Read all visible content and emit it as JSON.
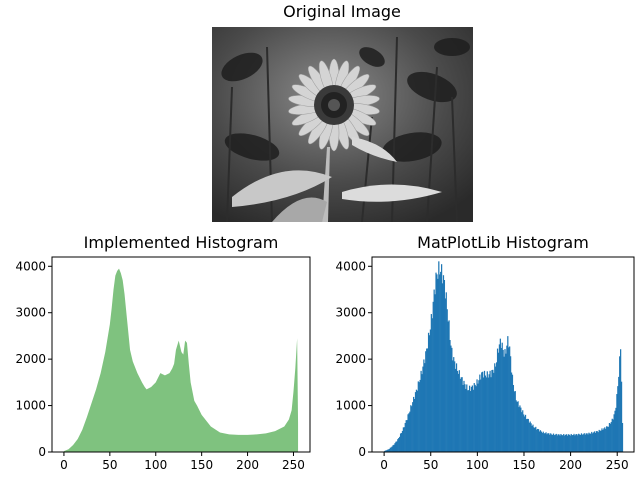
{
  "image_panel": {
    "title": "Original Image"
  },
  "colors": {
    "implemented_fill": "#7fc27f",
    "matplotlib_fill": "#1f77b4"
  },
  "chart_data": [
    {
      "type": "area",
      "title": "Implemented Histogram",
      "xlabel": "",
      "ylabel": "",
      "xlim": [
        -13,
        268
      ],
      "ylim": [
        0,
        4200
      ],
      "xticks": [
        0,
        50,
        100,
        150,
        200,
        250
      ],
      "yticks": [
        0,
        1000,
        2000,
        3000,
        4000
      ],
      "grid": false,
      "series": [
        {
          "x": [
            0,
            5,
            10,
            15,
            20,
            25,
            30,
            35,
            40,
            45,
            50,
            52,
            54,
            56,
            58,
            60,
            62,
            64,
            66,
            68,
            70,
            72,
            75,
            80,
            85,
            88,
            90,
            95,
            100,
            105,
            110,
            115,
            118,
            120,
            122,
            125,
            128,
            130,
            132,
            134,
            136,
            138,
            140,
            142,
            145,
            150,
            160,
            170,
            180,
            190,
            200,
            210,
            220,
            230,
            240,
            245,
            248,
            250,
            252,
            254,
            255
          ],
          "values": [
            20,
            60,
            150,
            280,
            480,
            750,
            1050,
            1350,
            1700,
            2150,
            2750,
            3100,
            3500,
            3800,
            3900,
            3950,
            3850,
            3700,
            3400,
            3000,
            2600,
            2200,
            1950,
            1700,
            1500,
            1400,
            1350,
            1400,
            1500,
            1700,
            1650,
            1700,
            1800,
            1900,
            2200,
            2400,
            2150,
            2100,
            2400,
            2350,
            1900,
            1500,
            1300,
            1100,
            1000,
            800,
            550,
            420,
            380,
            370,
            370,
            380,
            400,
            450,
            550,
            700,
            900,
            1300,
            1800,
            2450,
            600
          ]
        }
      ]
    },
    {
      "type": "bar",
      "title": "MatPlotLib Histogram",
      "xlabel": "",
      "ylabel": "",
      "xlim": [
        -13,
        268
      ],
      "ylim": [
        0,
        4200
      ],
      "xticks": [
        0,
        50,
        100,
        150,
        200,
        250
      ],
      "yticks": [
        0,
        1000,
        2000,
        3000,
        4000
      ],
      "grid": false,
      "bins": 256,
      "series": [
        {
          "x": [
            0,
            5,
            10,
            15,
            20,
            25,
            30,
            35,
            40,
            45,
            50,
            52,
            54,
            56,
            58,
            60,
            62,
            64,
            66,
            68,
            70,
            72,
            75,
            80,
            85,
            88,
            90,
            95,
            100,
            105,
            110,
            115,
            118,
            120,
            122,
            125,
            128,
            130,
            132,
            134,
            136,
            138,
            140,
            142,
            145,
            150,
            160,
            170,
            180,
            190,
            200,
            210,
            220,
            230,
            240,
            245,
            248,
            250,
            252,
            254,
            255
          ],
          "values": [
            20,
            60,
            150,
            280,
            480,
            750,
            1050,
            1350,
            1700,
            2150,
            2750,
            3100,
            3500,
            3800,
            3900,
            3950,
            3850,
            3700,
            3400,
            3000,
            2600,
            2200,
            1950,
            1700,
            1500,
            1400,
            1350,
            1400,
            1500,
            1700,
            1650,
            1700,
            1800,
            1900,
            2200,
            2400,
            2150,
            2100,
            2400,
            2350,
            1900,
            1500,
            1300,
            1100,
            1000,
            800,
            550,
            420,
            380,
            370,
            370,
            380,
            400,
            450,
            550,
            700,
            900,
            1300,
            1800,
            2450,
            600
          ]
        }
      ]
    }
  ]
}
